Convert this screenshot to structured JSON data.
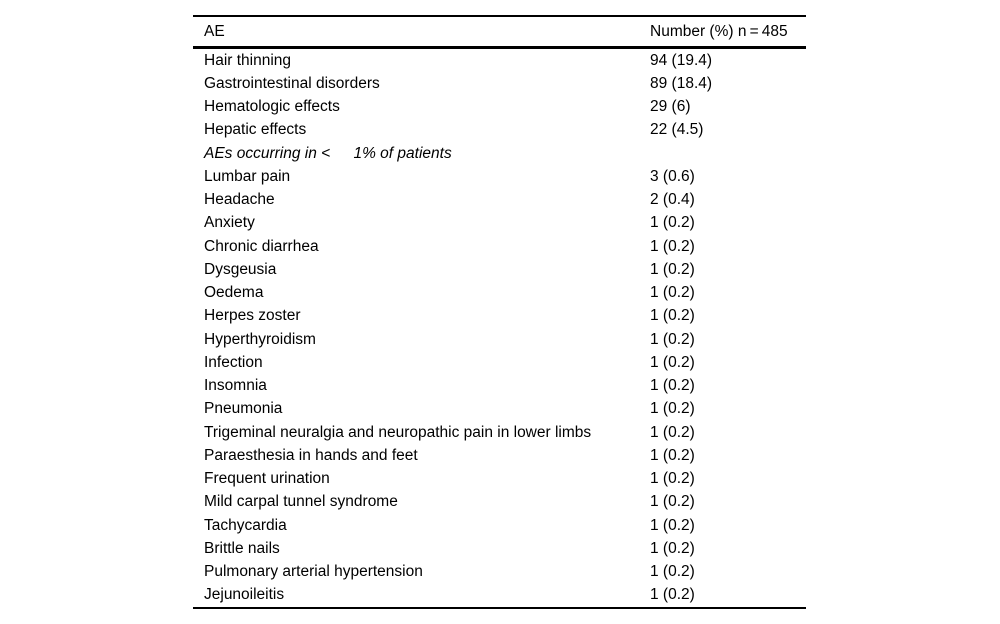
{
  "page": {
    "background_color": "#ffffff",
    "text_color": "#000000",
    "rule_color": "#000000"
  },
  "table": {
    "columns": [
      {
        "label": "AE"
      },
      {
        "label": "Number (%) n = 485"
      }
    ],
    "rows": [
      {
        "label": "Hair thinning",
        "value": "94 (19.4)"
      },
      {
        "label": "Gastrointestinal disorders",
        "value": "89 (18.4)"
      },
      {
        "label": "Hematologic effects",
        "value": "29 (6)"
      },
      {
        "label": "Hepatic effects",
        "value": "22 (4.5)"
      },
      {
        "label": "AEs occurring in <   1% of patients",
        "value": "",
        "type": "subheader"
      },
      {
        "label": "Lumbar pain",
        "value": "3 (0.6)"
      },
      {
        "label": "Headache",
        "value": "2 (0.4)"
      },
      {
        "label": "Anxiety",
        "value": "1 (0.2)"
      },
      {
        "label": "Chronic diarrhea",
        "value": "1 (0.2)"
      },
      {
        "label": "Dysgeusia",
        "value": "1 (0.2)"
      },
      {
        "label": "Oedema",
        "value": "1 (0.2)"
      },
      {
        "label": "Herpes zoster",
        "value": "1 (0.2)"
      },
      {
        "label": "Hyperthyroidism",
        "value": "1 (0.2)"
      },
      {
        "label": "Infection",
        "value": "1 (0.2)"
      },
      {
        "label": "Insomnia",
        "value": "1 (0.2)"
      },
      {
        "label": "Pneumonia",
        "value": "1 (0.2)"
      },
      {
        "label": "Trigeminal neuralgia and neuropathic pain in lower limbs",
        "value": "1 (0.2)"
      },
      {
        "label": "Paraesthesia in hands and feet",
        "value": "1 (0.2)"
      },
      {
        "label": "Frequent urination",
        "value": "1 (0.2)"
      },
      {
        "label": "Mild carpal tunnel syndrome",
        "value": "1 (0.2)"
      },
      {
        "label": "Tachycardia",
        "value": "1 (0.2)"
      },
      {
        "label": "Brittle nails",
        "value": "1 (0.2)"
      },
      {
        "label": "Pulmonary arterial hypertension",
        "value": "1 (0.2)"
      },
      {
        "label": "Jejunoileitis",
        "value": "1 (0.2)"
      }
    ]
  }
}
